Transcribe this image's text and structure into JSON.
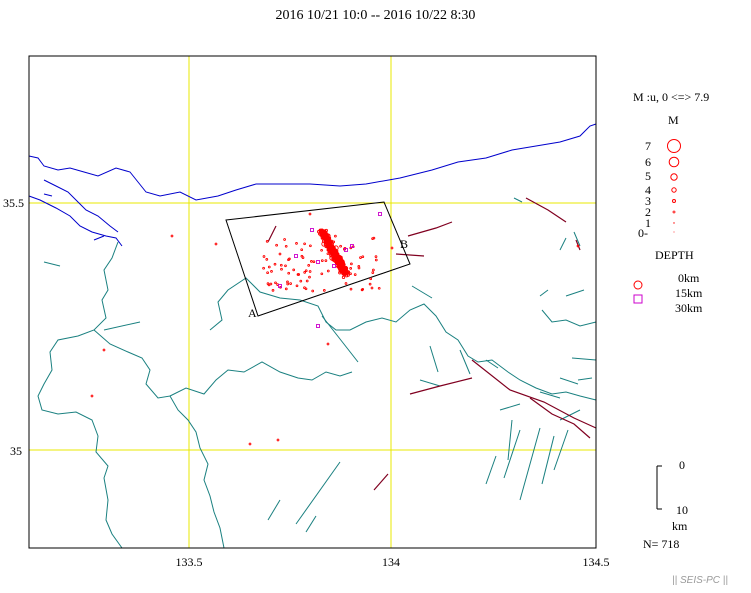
{
  "title": "2016 10/21 10:0 -- 2016 10/22 8:30",
  "map": {
    "lon_ticks": [
      "133.5",
      "134",
      "134.5"
    ],
    "lat_ticks": [
      "35.5",
      "35"
    ],
    "section_labels": {
      "a": "A",
      "b": "B"
    }
  },
  "legend": {
    "magnitude_header": "M :u, 0 <=> 7.9",
    "magnitude_title": "M",
    "magnitudes": [
      "7",
      "6",
      "5",
      "4",
      "3",
      "2",
      "1",
      "0-"
    ],
    "depth_title": "DEPTH",
    "depths": [
      "0km",
      "15km",
      "30km"
    ],
    "scale_top": "0",
    "scale_bottom": "10",
    "scale_unit": "km",
    "count": "N= 718"
  },
  "credit": "|| SEIS-PC ||",
  "colors": {
    "coast": "#0000cc",
    "prefecture": "#1a8080",
    "fault": "#800020",
    "grid": "#e8e800",
    "shallow": "#ff0000",
    "deep": "#cc00cc"
  }
}
